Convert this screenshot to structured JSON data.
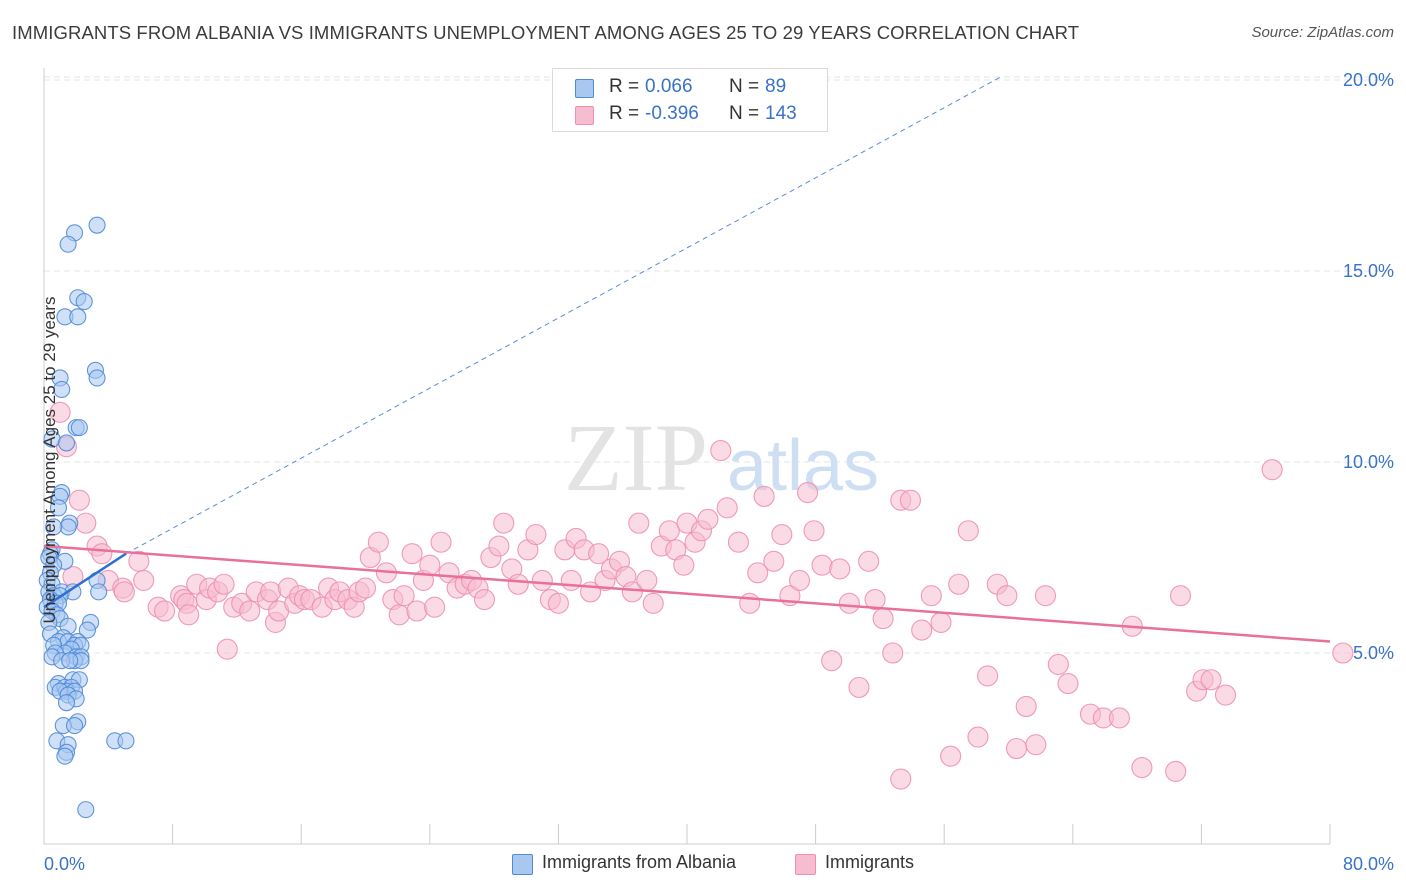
{
  "title": "IMMIGRANTS FROM ALBANIA VS IMMIGRANTS UNEMPLOYMENT AMONG AGES 25 TO 29 YEARS CORRELATION CHART",
  "source": "Source: ZipAtlas.com",
  "colors": {
    "blue_fill": "#a9c8f0",
    "blue_stroke": "#4f8ad8",
    "blue_line": "#2f6fd0",
    "pink_fill": "#f6bcd0",
    "pink_stroke": "#ee8fb0",
    "pink_line": "#e8709a",
    "axis_text": "#3a72c8",
    "grid": "#e6e6e6"
  },
  "legend": {
    "series": [
      {
        "r_label": "R =",
        "r_value": "0.066",
        "n_label": "N =",
        "n_value": "89"
      },
      {
        "r_label": "R =",
        "r_value": "-0.396",
        "n_label": "N =",
        "n_value": "143"
      }
    ]
  },
  "chart_data": {
    "type": "scatter",
    "title": "IMMIGRANTS FROM ALBANIA VS IMMIGRANTS UNEMPLOYMENT AMONG AGES 25 TO 29 YEARS CORRELATION CHART",
    "xlabel": "",
    "ylabel": "Unemployment Among Ages 25 to 29 years",
    "xlim": [
      0,
      80
    ],
    "ylim": [
      0,
      20.5
    ],
    "x_tick_labels": [
      "0.0%",
      "80.0%"
    ],
    "y_ticks": [
      5,
      10,
      15,
      20
    ],
    "y_tick_labels": [
      "5.0%",
      "10.0%",
      "15.0%",
      "20.0%"
    ],
    "watermark": {
      "zip": "ZIP",
      "atlas": "atlas"
    },
    "series": [
      {
        "name": "Immigrants from Albania",
        "r": 0.066,
        "n": 89,
        "trend_solid": [
          [
            0.0,
            6.2
          ],
          [
            5.1,
            7.6
          ]
        ],
        "trend_dashed": [
          [
            5.1,
            7.6
          ],
          [
            59.6,
            20.1
          ]
        ],
        "points": [
          [
            3.3,
            16.2
          ],
          [
            1.9,
            16.0
          ],
          [
            1.5,
            15.7
          ],
          [
            2.1,
            14.3
          ],
          [
            2.5,
            14.2
          ],
          [
            1.3,
            13.8
          ],
          [
            2.1,
            13.8
          ],
          [
            3.2,
            12.4
          ],
          [
            3.3,
            12.2
          ],
          [
            1.0,
            12.2
          ],
          [
            1.1,
            11.9
          ],
          [
            2.0,
            10.9
          ],
          [
            2.2,
            10.9
          ],
          [
            0.5,
            10.6
          ],
          [
            1.4,
            10.5
          ],
          [
            1.1,
            9.2
          ],
          [
            1.0,
            9.1
          ],
          [
            0.9,
            8.8
          ],
          [
            1.6,
            8.4
          ],
          [
            1.5,
            8.3
          ],
          [
            0.6,
            8.3
          ],
          [
            0.5,
            7.7
          ],
          [
            0.4,
            7.6
          ],
          [
            0.3,
            7.5
          ],
          [
            1.3,
            7.4
          ],
          [
            0.6,
            7.3
          ],
          [
            0.4,
            7.1
          ],
          [
            0.2,
            6.9
          ],
          [
            0.5,
            6.8
          ],
          [
            3.3,
            6.9
          ],
          [
            0.3,
            6.6
          ],
          [
            1.1,
            6.6
          ],
          [
            1.8,
            6.6
          ],
          [
            3.4,
            6.6
          ],
          [
            0.6,
            6.5
          ],
          [
            1.0,
            6.5
          ],
          [
            0.4,
            6.4
          ],
          [
            0.7,
            6.3
          ],
          [
            0.9,
            6.3
          ],
          [
            0.2,
            6.2
          ],
          [
            0.5,
            6.1
          ],
          [
            0.8,
            6.0
          ],
          [
            1.0,
            5.9
          ],
          [
            0.3,
            5.8
          ],
          [
            2.9,
            5.8
          ],
          [
            1.5,
            5.7
          ],
          [
            2.7,
            5.6
          ],
          [
            0.4,
            5.5
          ],
          [
            1.2,
            5.4
          ],
          [
            0.9,
            5.3
          ],
          [
            1.5,
            5.3
          ],
          [
            2.1,
            5.3
          ],
          [
            0.6,
            5.2
          ],
          [
            1.9,
            5.2
          ],
          [
            2.3,
            5.2
          ],
          [
            1.7,
            5.1
          ],
          [
            1.3,
            5.0
          ],
          [
            0.7,
            5.0
          ],
          [
            2.0,
            4.9
          ],
          [
            2.3,
            4.9
          ],
          [
            0.5,
            4.9
          ],
          [
            1.9,
            4.8
          ],
          [
            1.1,
            4.8
          ],
          [
            2.3,
            4.8
          ],
          [
            1.6,
            4.8
          ],
          [
            1.8,
            4.3
          ],
          [
            2.2,
            4.3
          ],
          [
            0.9,
            4.2
          ],
          [
            0.7,
            4.1
          ],
          [
            1.3,
            4.1
          ],
          [
            1.7,
            4.1
          ],
          [
            1.4,
            4.0
          ],
          [
            1.9,
            4.0
          ],
          [
            1.0,
            4.0
          ],
          [
            1.5,
            3.9
          ],
          [
            2.0,
            3.8
          ],
          [
            1.4,
            3.7
          ],
          [
            2.1,
            3.2
          ],
          [
            1.2,
            3.1
          ],
          [
            1.9,
            3.1
          ],
          [
            0.8,
            2.7
          ],
          [
            4.4,
            2.7
          ],
          [
            5.1,
            2.7
          ],
          [
            1.5,
            2.6
          ],
          [
            1.4,
            2.4
          ],
          [
            1.3,
            2.3
          ],
          [
            2.6,
            0.9
          ]
        ]
      },
      {
        "name": "Immigrants",
        "r": -0.396,
        "n": 143,
        "trend_solid": [
          [
            0.0,
            7.8
          ],
          [
            80.0,
            5.3
          ]
        ],
        "points": [
          [
            1.0,
            11.3
          ],
          [
            1.4,
            10.4
          ],
          [
            2.2,
            9.0
          ],
          [
            2.6,
            8.4
          ],
          [
            3.3,
            7.8
          ],
          [
            3.6,
            7.6
          ],
          [
            5.9,
            7.4
          ],
          [
            1.8,
            7.0
          ],
          [
            4.0,
            6.9
          ],
          [
            6.2,
            6.9
          ],
          [
            4.9,
            6.7
          ],
          [
            5.0,
            6.6
          ],
          [
            7.1,
            6.2
          ],
          [
            7.5,
            6.1
          ],
          [
            8.5,
            6.5
          ],
          [
            8.7,
            6.4
          ],
          [
            8.9,
            6.3
          ],
          [
            9.0,
            6.0
          ],
          [
            9.5,
            6.8
          ],
          [
            10.1,
            6.4
          ],
          [
            10.3,
            6.7
          ],
          [
            10.8,
            6.6
          ],
          [
            11.2,
            6.8
          ],
          [
            11.4,
            5.1
          ],
          [
            11.8,
            6.2
          ],
          [
            12.3,
            6.3
          ],
          [
            12.8,
            6.1
          ],
          [
            13.2,
            6.6
          ],
          [
            13.9,
            6.4
          ],
          [
            14.1,
            6.6
          ],
          [
            14.4,
            5.8
          ],
          [
            14.6,
            6.1
          ],
          [
            15.2,
            6.7
          ],
          [
            15.6,
            6.3
          ],
          [
            15.9,
            6.5
          ],
          [
            16.2,
            6.4
          ],
          [
            16.6,
            6.4
          ],
          [
            17.3,
            6.2
          ],
          [
            17.7,
            6.7
          ],
          [
            18.1,
            6.4
          ],
          [
            18.4,
            6.6
          ],
          [
            18.9,
            6.4
          ],
          [
            19.3,
            6.2
          ],
          [
            19.6,
            6.6
          ],
          [
            20.0,
            6.7
          ],
          [
            20.3,
            7.5
          ],
          [
            20.8,
            7.9
          ],
          [
            21.3,
            7.1
          ],
          [
            21.7,
            6.4
          ],
          [
            22.1,
            6.0
          ],
          [
            22.4,
            6.5
          ],
          [
            22.9,
            7.6
          ],
          [
            23.2,
            6.1
          ],
          [
            23.6,
            6.9
          ],
          [
            24.0,
            7.3
          ],
          [
            24.3,
            6.2
          ],
          [
            24.7,
            7.9
          ],
          [
            25.2,
            7.1
          ],
          [
            25.7,
            6.7
          ],
          [
            26.2,
            6.8
          ],
          [
            26.6,
            6.9
          ],
          [
            27.0,
            6.7
          ],
          [
            27.4,
            6.4
          ],
          [
            27.8,
            7.5
          ],
          [
            28.3,
            7.8
          ],
          [
            28.6,
            8.4
          ],
          [
            29.1,
            7.2
          ],
          [
            29.5,
            6.8
          ],
          [
            30.1,
            7.7
          ],
          [
            30.6,
            8.1
          ],
          [
            31.0,
            6.9
          ],
          [
            31.5,
            6.4
          ],
          [
            32.0,
            6.3
          ],
          [
            32.4,
            7.7
          ],
          [
            32.8,
            6.9
          ],
          [
            33.1,
            8.0
          ],
          [
            33.6,
            7.7
          ],
          [
            34.0,
            6.6
          ],
          [
            34.5,
            7.6
          ],
          [
            34.9,
            6.9
          ],
          [
            35.3,
            7.2
          ],
          [
            35.8,
            7.4
          ],
          [
            36.2,
            7.0
          ],
          [
            36.6,
            6.6
          ],
          [
            37.0,
            8.4
          ],
          [
            37.5,
            6.9
          ],
          [
            37.9,
            6.3
          ],
          [
            38.4,
            7.8
          ],
          [
            38.9,
            8.2
          ],
          [
            39.3,
            7.7
          ],
          [
            39.8,
            7.3
          ],
          [
            40.0,
            8.4
          ],
          [
            40.5,
            7.9
          ],
          [
            40.9,
            8.2
          ],
          [
            41.3,
            8.5
          ],
          [
            42.1,
            10.3
          ],
          [
            42.5,
            8.8
          ],
          [
            43.2,
            7.9
          ],
          [
            43.9,
            6.3
          ],
          [
            44.4,
            7.1
          ],
          [
            44.8,
            9.1
          ],
          [
            45.4,
            7.4
          ],
          [
            45.9,
            8.1
          ],
          [
            46.4,
            6.5
          ],
          [
            47.0,
            6.9
          ],
          [
            47.5,
            9.2
          ],
          [
            47.9,
            8.2
          ],
          [
            48.4,
            7.3
          ],
          [
            49.0,
            4.8
          ],
          [
            49.5,
            7.2
          ],
          [
            50.1,
            6.3
          ],
          [
            50.7,
            4.1
          ],
          [
            51.3,
            7.4
          ],
          [
            51.7,
            6.4
          ],
          [
            52.2,
            5.9
          ],
          [
            52.8,
            5.0
          ],
          [
            53.3,
            9.0
          ],
          [
            53.9,
            9.0
          ],
          [
            54.6,
            5.6
          ],
          [
            55.2,
            6.5
          ],
          [
            55.8,
            5.8
          ],
          [
            56.4,
            2.3
          ],
          [
            56.9,
            6.8
          ],
          [
            57.5,
            8.2
          ],
          [
            58.1,
            2.8
          ],
          [
            58.7,
            4.4
          ],
          [
            59.3,
            6.8
          ],
          [
            59.9,
            6.5
          ],
          [
            60.5,
            2.5
          ],
          [
            61.1,
            3.6
          ],
          [
            61.7,
            2.6
          ],
          [
            62.3,
            6.5
          ],
          [
            63.1,
            4.7
          ],
          [
            63.7,
            4.2
          ],
          [
            65.1,
            3.4
          ],
          [
            65.9,
            3.3
          ],
          [
            66.9,
            3.3
          ],
          [
            67.7,
            5.7
          ],
          [
            68.3,
            2.0
          ],
          [
            70.4,
            1.9
          ],
          [
            70.7,
            6.5
          ],
          [
            71.7,
            4.0
          ],
          [
            72.1,
            4.3
          ],
          [
            72.6,
            4.3
          ],
          [
            73.5,
            3.9
          ],
          [
            76.4,
            9.8
          ],
          [
            80.8,
            5.0
          ],
          [
            53.3,
            1.7
          ]
        ]
      }
    ]
  }
}
